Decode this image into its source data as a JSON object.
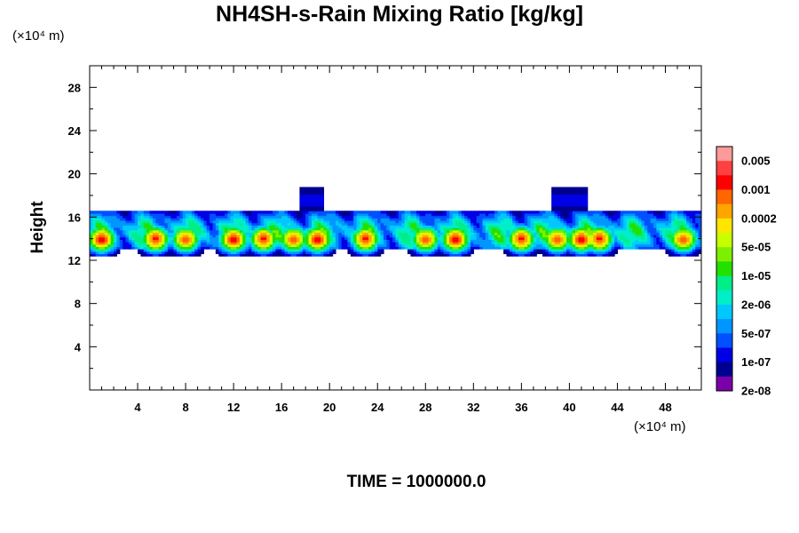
{
  "chart_data": {
    "type": "heatmap",
    "title": "NH4SH-s-Rain Mixing Ratio [kg/kg]",
    "ylabel": "Height",
    "xlabel": "",
    "x_unit": "(×10⁴ m)",
    "y_unit": "(×10⁴ m)",
    "x_ticks": [
      4,
      8,
      12,
      16,
      20,
      24,
      28,
      32,
      36,
      40,
      44,
      48
    ],
    "y_ticks": [
      4,
      8,
      12,
      16,
      20,
      24,
      28
    ],
    "xlim": [
      0,
      51
    ],
    "ylim": [
      0,
      30
    ],
    "grid": false,
    "legend_position": "right",
    "colorbar": {
      "labels": [
        "0.005",
        "0.001",
        "0.0002",
        "5e-05",
        "1e-05",
        "2e-06",
        "5e-07",
        "1e-07",
        "2e-08"
      ],
      "colors": [
        "#ff9a9a",
        "#ff4040",
        "#ff0000",
        "#ff6600",
        "#ffa500",
        "#ffe600",
        "#c8ff00",
        "#7df000",
        "#22e000",
        "#00ee88",
        "#00eec8",
        "#00c8ff",
        "#0096ff",
        "#0050ff",
        "#0000e6",
        "#000090",
        "#7a00a8"
      ]
    },
    "layer": {
      "height_range": [
        13,
        19.5
      ],
      "core_height": 14,
      "peak_x": [
        1,
        5.5,
        8,
        12,
        14.5,
        17,
        19,
        23,
        28,
        30.5,
        36,
        39,
        41,
        42.5,
        49.5
      ],
      "anvil_x": [
        17.5,
        19.5,
        38.5,
        41.5
      ]
    }
  },
  "footer": {
    "time": "TIME = 1000000.0"
  }
}
